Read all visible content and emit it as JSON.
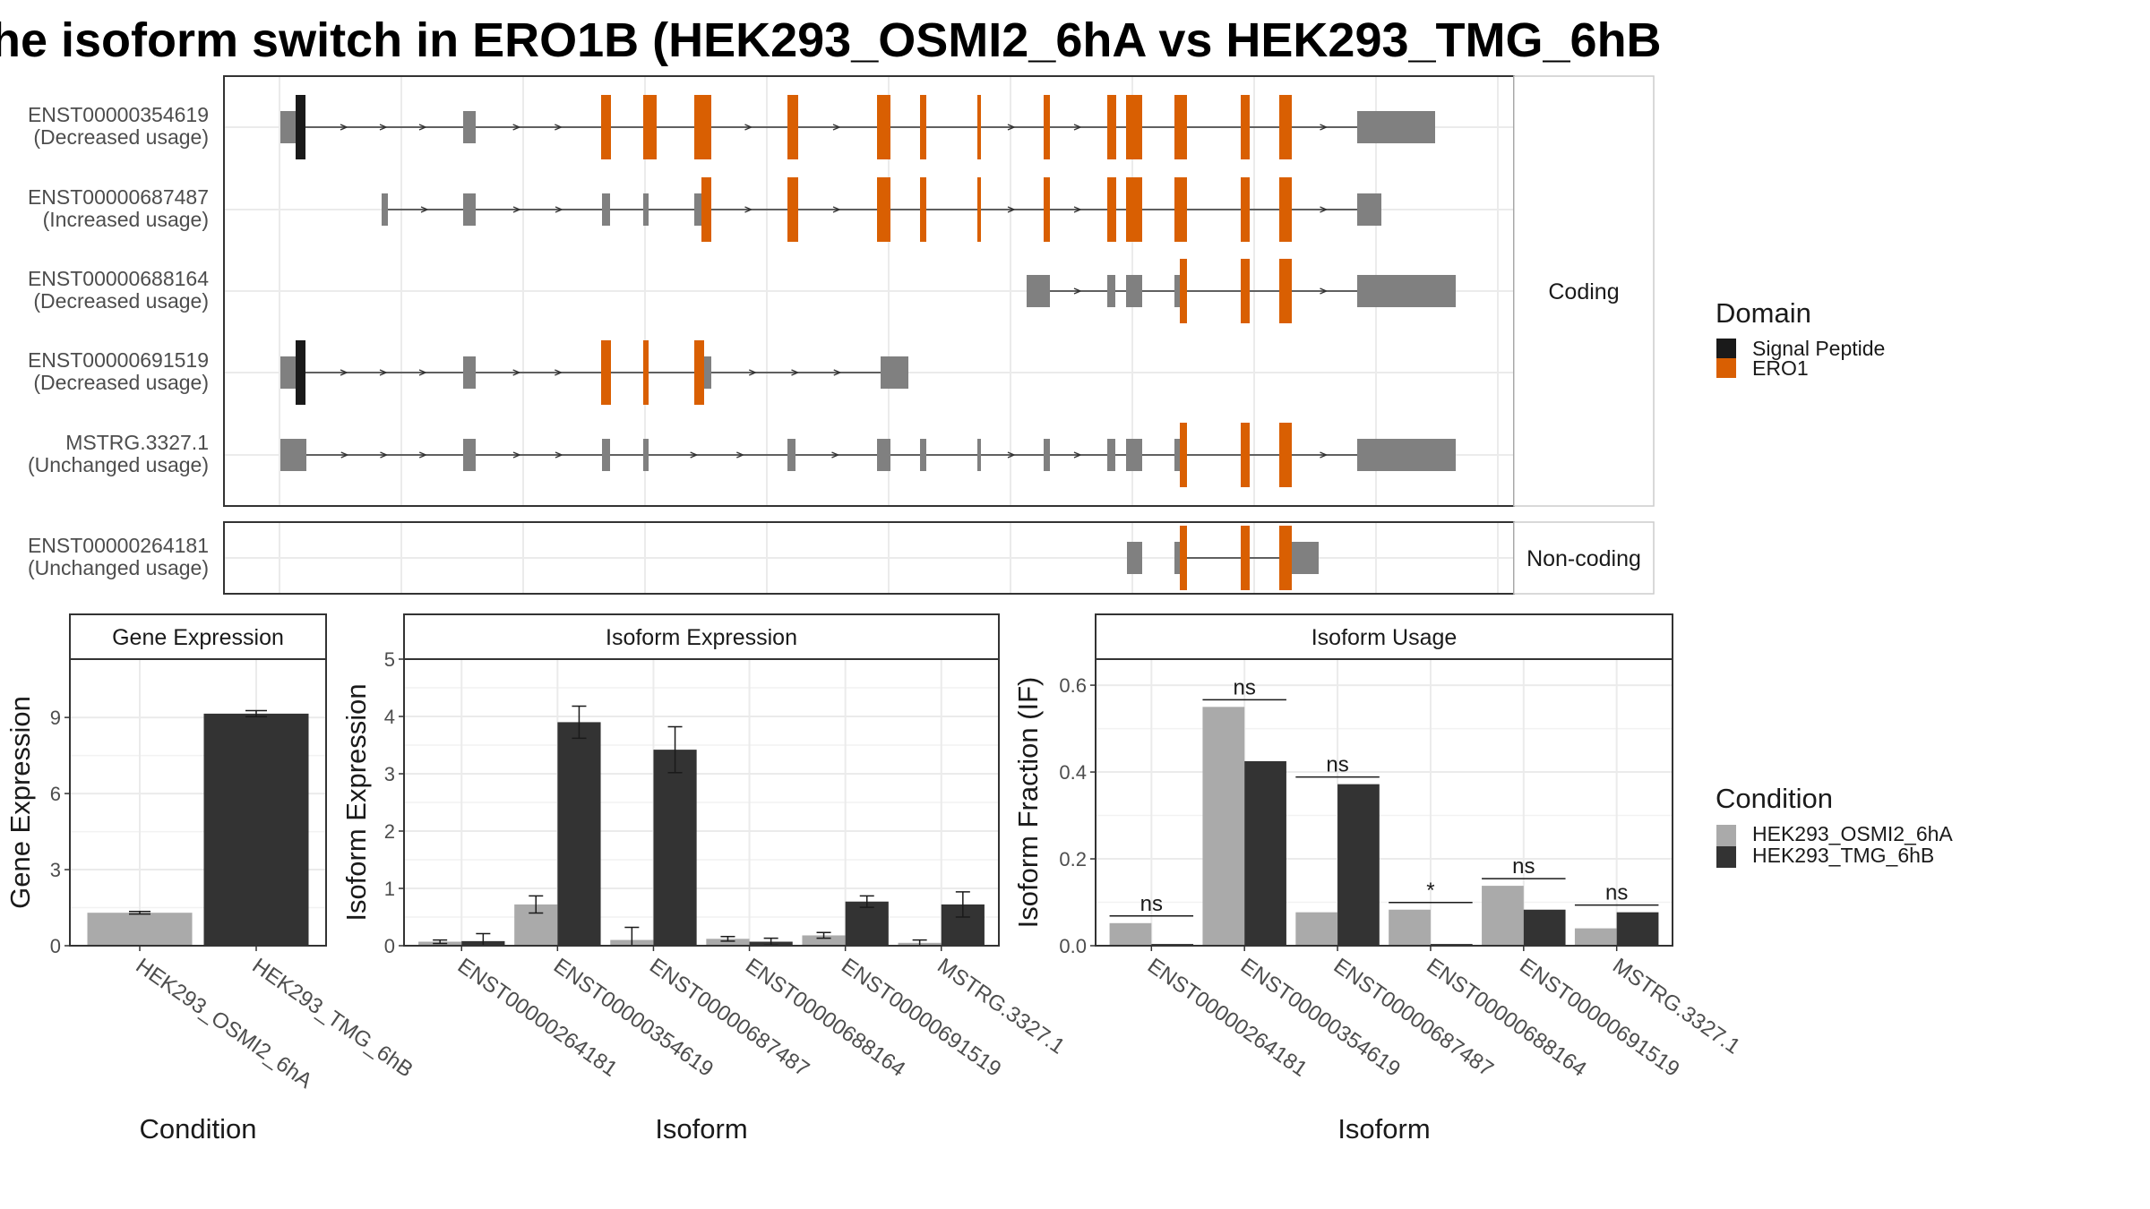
{
  "title": "he isoform switch in ERO1B (HEK293_OSMI2_6hA vs HEK293_TMG_6hB",
  "colors": {
    "signal_peptide": "#1a1a1a",
    "ero1": "#d95f02",
    "utr_grey": "#808080",
    "osmi": "#aaaaaa",
    "tmg": "#333333"
  },
  "transcript_panel": {
    "groups": [
      {
        "label": "Coding",
        "rows": [
          {
            "id": "ENST00000354619",
            "usage": "(Decreased usage)"
          },
          {
            "id": "ENST00000687487",
            "usage": "(Increased usage)"
          },
          {
            "id": "ENST00000688164",
            "usage": "(Decreased usage)"
          },
          {
            "id": "ENST00000691519",
            "usage": "(Decreased usage)"
          },
          {
            "id": "MSTRG.3327.1",
            "usage": "(Unchanged usage)"
          }
        ]
      },
      {
        "label": "Non-coding",
        "rows": [
          {
            "id": "ENST00000264181",
            "usage": "(Unchanged usage)"
          }
        ]
      }
    ],
    "legend": {
      "title": "Domain",
      "items": [
        {
          "label": "Signal Peptide",
          "color": "#1a1a1a"
        },
        {
          "label": "ERO1",
          "color": "#d95f02"
        }
      ]
    }
  },
  "chart_data": [
    {
      "type": "bar",
      "panel_title": "Gene Expression",
      "ylabel": "Gene Expression",
      "xlabel": "Condition",
      "ylim": [
        0,
        11.3
      ],
      "yticks": [
        0,
        3,
        6,
        9
      ],
      "categories": [
        "HEK293_OSMI2_6hA",
        "HEK293_TMG_6hB"
      ],
      "values": [
        1.3,
        9.15
      ],
      "errors": [
        0.05,
        0.12
      ],
      "colors": [
        "#aaaaaa",
        "#333333"
      ]
    },
    {
      "type": "bar",
      "panel_title": "Isoform Expression",
      "ylabel": "Isoform Expression",
      "xlabel": "Isoform",
      "ylim": [
        0,
        5
      ],
      "yticks": [
        0,
        1,
        2,
        3,
        4,
        5
      ],
      "categories": [
        "ENST00000264181",
        "ENST00000354619",
        "ENST00000687487",
        "ENST00000688164",
        "ENST00000691519",
        "MSTRG.3327.1"
      ],
      "series": [
        {
          "name": "HEK293_OSMI2_6hA",
          "color": "#aaaaaa",
          "values": [
            0.07,
            0.72,
            0.1,
            0.12,
            0.18,
            0.05
          ],
          "errors": [
            0.03,
            0.15,
            0.22,
            0.04,
            0.05,
            0.05
          ]
        },
        {
          "name": "HEK293_TMG_6hB",
          "color": "#333333",
          "values": [
            0.08,
            3.9,
            3.42,
            0.07,
            0.77,
            0.72
          ],
          "errors": [
            0.13,
            0.28,
            0.4,
            0.06,
            0.1,
            0.22
          ]
        }
      ]
    },
    {
      "type": "bar",
      "panel_title": "Isoform Usage",
      "ylabel": "Isoform Fraction (IF)",
      "xlabel": "Isoform",
      "ylim": [
        0,
        0.66
      ],
      "yticks": [
        0.0,
        0.2,
        0.4,
        0.6
      ],
      "ytick_labels": [
        "0.0",
        "0.2",
        "0.4",
        "0.6"
      ],
      "categories": [
        "ENST00000264181",
        "ENST00000354619",
        "ENST00000687487",
        "ENST00000688164",
        "ENST00000691519",
        "MSTRG.3327.1"
      ],
      "series": [
        {
          "name": "HEK293_OSMI2_6hA",
          "color": "#aaaaaa",
          "values": [
            0.052,
            0.55,
            0.077,
            0.083,
            0.138,
            0.04
          ]
        },
        {
          "name": "HEK293_TMG_6hB",
          "color": "#333333",
          "values": [
            0.004,
            0.425,
            0.372,
            0.004,
            0.083,
            0.077
          ]
        }
      ],
      "significance": [
        "ns",
        "ns",
        "ns",
        "*",
        "ns",
        "ns"
      ]
    }
  ],
  "condition_legend": {
    "title": "Condition",
    "items": [
      {
        "label": "HEK293_OSMI2_6hA",
        "color": "#aaaaaa"
      },
      {
        "label": "HEK293_TMG_6hB",
        "color": "#333333"
      }
    ]
  }
}
